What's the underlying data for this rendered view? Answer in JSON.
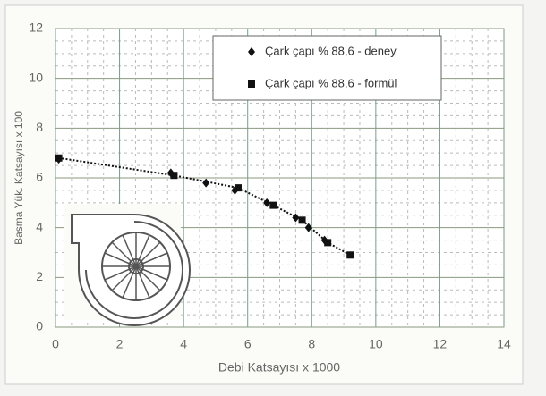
{
  "chart_data": {
    "type": "scatter",
    "xlabel": "Debi Katsayısı x 1000",
    "ylabel": "Basma Yük. Katsayısı x 100",
    "xlim": [
      0,
      14
    ],
    "xticks": [
      0,
      2,
      4,
      6,
      8,
      10,
      12,
      14
    ],
    "ylim": [
      0,
      12
    ],
    "yticks": [
      0,
      2,
      4,
      6,
      8,
      10,
      12
    ],
    "grid": true,
    "legend": "upper right",
    "series": [
      {
        "name": "Çark çapı % 88,6 - deney",
        "color": "#111111",
        "marker": "diamond",
        "line": false,
        "x": [
          0.1,
          3.6,
          4.7,
          5.6,
          6.6,
          7.5,
          7.9,
          8.4
        ],
        "values": [
          6.75,
          6.2,
          5.8,
          5.5,
          5.0,
          4.4,
          4.0,
          3.5
        ]
      },
      {
        "name": "Çark çapı % 88,6 - formül",
        "color": "#111111",
        "marker": "square",
        "line": true,
        "x": [
          0.1,
          3.7,
          5.7,
          6.8,
          7.7,
          8.5,
          9.2
        ],
        "values": [
          6.8,
          6.1,
          5.6,
          4.9,
          4.3,
          3.4,
          2.9
        ]
      }
    ]
  }
}
